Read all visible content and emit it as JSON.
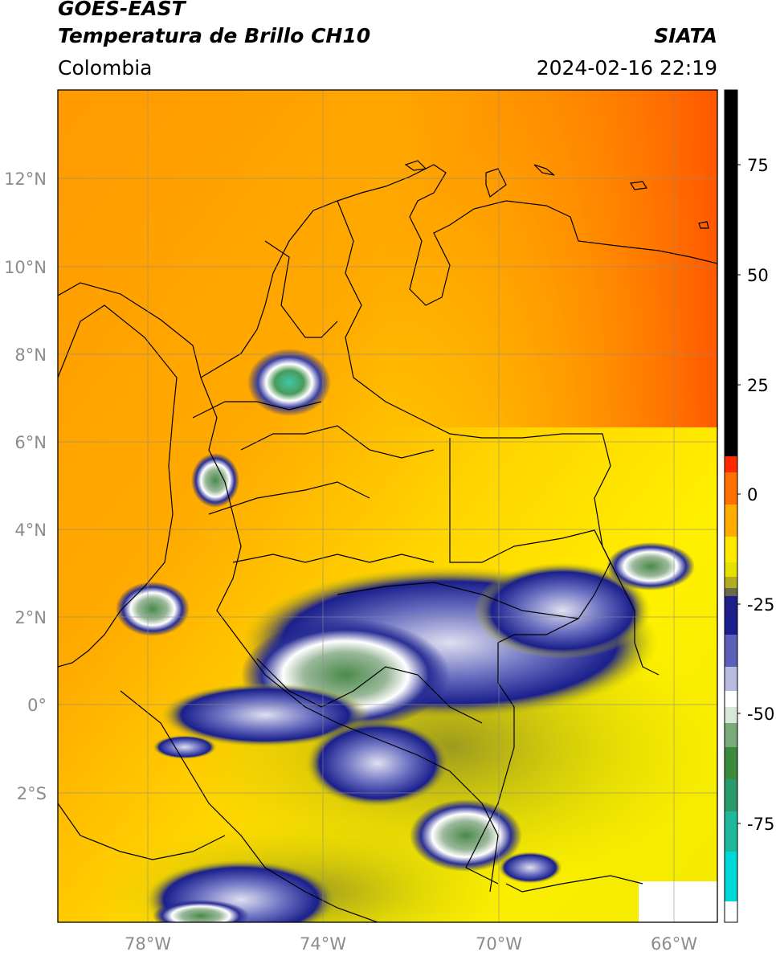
{
  "header": {
    "satellite": "GOES-EAST",
    "product": "Temperatura de Brillo CH10",
    "region": "Colombia",
    "organization": "SIATA",
    "timestamp": "2024-02-16 22:19"
  },
  "map": {
    "lat_labels": [
      "12°N",
      "10°N",
      "8°N",
      "6°N",
      "4°N",
      "2°N",
      "0°",
      "2°S"
    ],
    "lon_labels": [
      "78°W",
      "74°W",
      "70°W",
      "66°W"
    ],
    "extent": {
      "lon_min": -80,
      "lon_max": -65,
      "lat_min": -5,
      "lat_max": 14
    }
  },
  "colorbar": {
    "ticks": [
      "75",
      "50",
      "25",
      "0",
      "-25",
      "-50",
      "-75"
    ],
    "range": [
      -95,
      90
    ],
    "colors": {
      "black": "#000000",
      "red": "#ff2a00",
      "orange": "#ff8c00",
      "yellow": "#fff000",
      "olive": "#c8c400",
      "navy": "#1a1f8c",
      "white": "#ffffff",
      "green": "#3c8a3c",
      "cyan": "#00d8d8"
    }
  }
}
